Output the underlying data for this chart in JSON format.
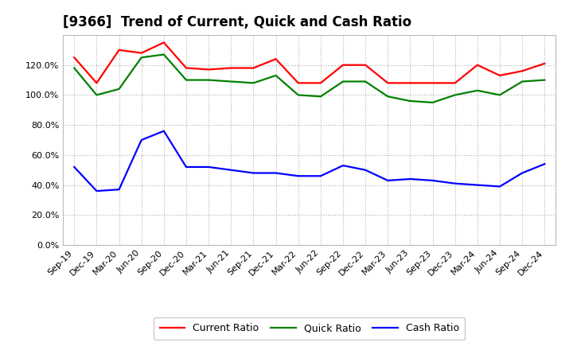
{
  "title": "[9366]  Trend of Current, Quick and Cash Ratio",
  "labels": [
    "Sep-19",
    "Dec-19",
    "Mar-20",
    "Jun-20",
    "Sep-20",
    "Dec-20",
    "Mar-21",
    "Jun-21",
    "Sep-21",
    "Dec-21",
    "Mar-22",
    "Jun-22",
    "Sep-22",
    "Dec-22",
    "Mar-23",
    "Jun-23",
    "Sep-23",
    "Dec-23",
    "Mar-24",
    "Jun-24",
    "Sep-24",
    "Dec-24"
  ],
  "current_ratio": [
    125,
    108,
    130,
    128,
    135,
    118,
    117,
    118,
    118,
    124,
    108,
    108,
    120,
    120,
    108,
    108,
    108,
    108,
    120,
    113,
    116,
    121
  ],
  "quick_ratio": [
    118,
    100,
    104,
    125,
    127,
    110,
    110,
    109,
    108,
    113,
    100,
    99,
    109,
    109,
    99,
    96,
    95,
    100,
    103,
    100,
    109,
    110
  ],
  "cash_ratio": [
    52,
    36,
    37,
    70,
    76,
    52,
    52,
    50,
    48,
    48,
    46,
    46,
    53,
    50,
    43,
    44,
    43,
    41,
    40,
    39,
    48,
    54
  ],
  "current_color": "#FF0000",
  "quick_color": "#008000",
  "cash_color": "#0000FF",
  "ylim": [
    0,
    140
  ],
  "ytick_values": [
    0,
    20,
    40,
    60,
    80,
    100,
    120
  ],
  "background_color": "#FFFFFF",
  "plot_bg_color": "#FFFFFF",
  "grid_color": "#999999",
  "title_fontsize": 12,
  "legend_fontsize": 9,
  "tick_fontsize": 8
}
